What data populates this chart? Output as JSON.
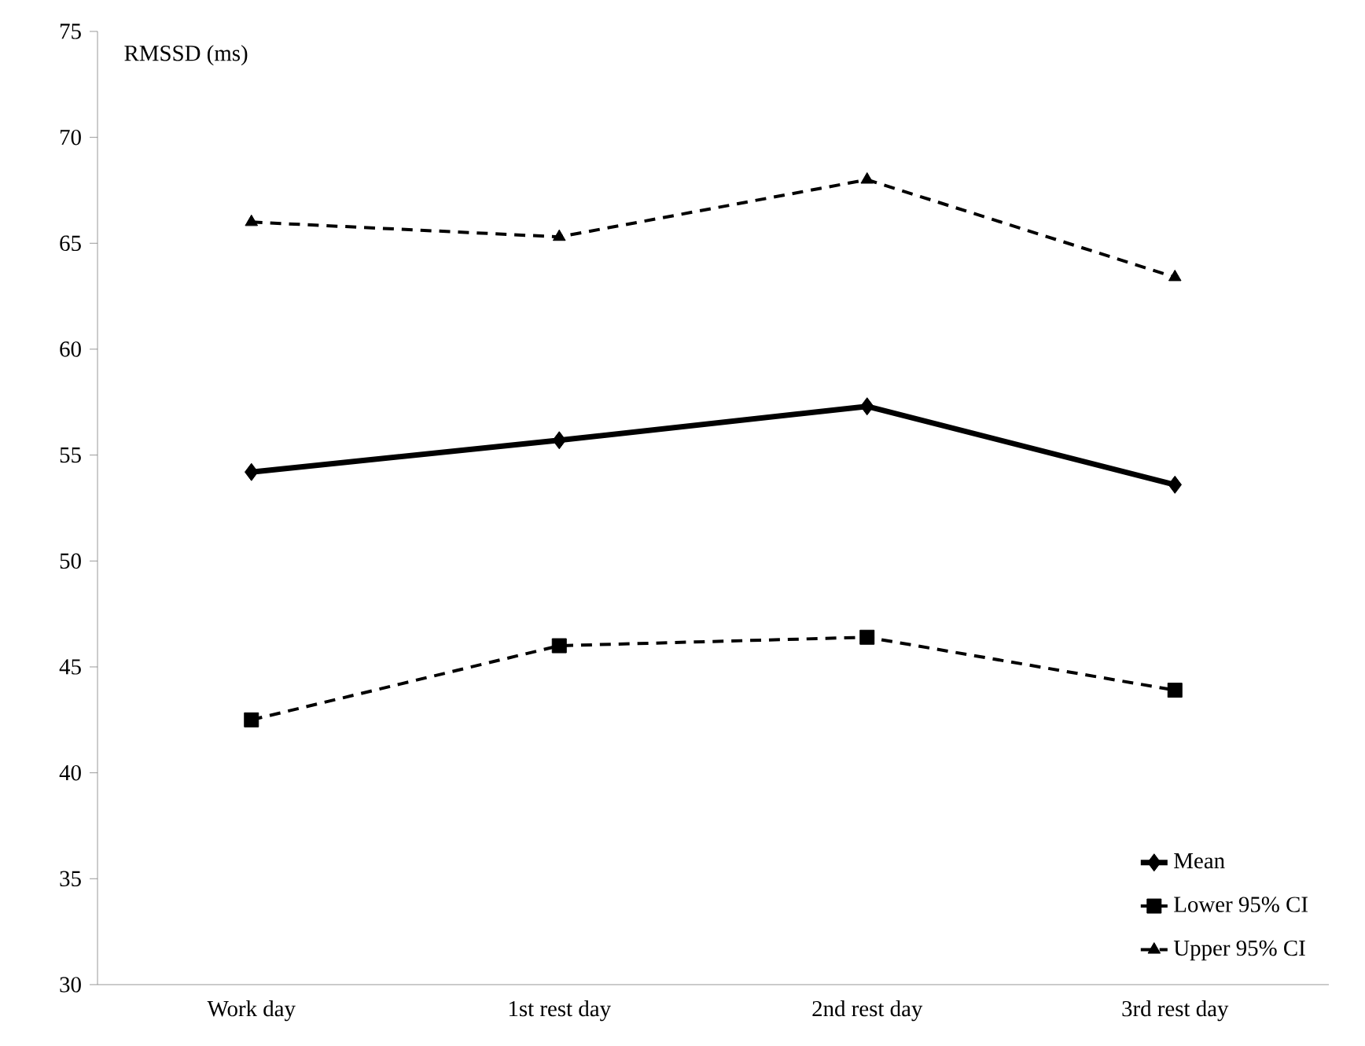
{
  "chart_data": {
    "type": "line",
    "ylabel": "RMSSD (ms)",
    "categories": [
      "Work day",
      "1st rest day",
      "2nd rest day",
      "3rd rest day"
    ],
    "series": [
      {
        "name": "Mean",
        "color": "#000000",
        "values": [
          54.2,
          55.7,
          57.3,
          53.6
        ],
        "marker": "diamond",
        "line_style": "solid"
      },
      {
        "name": "Lower 95% CI",
        "color": "#000000",
        "values": [
          42.5,
          46.0,
          46.4,
          43.9
        ],
        "marker": "square",
        "line_style": "dashed"
      },
      {
        "name": "Upper 95% CI",
        "color": "#000000",
        "values": [
          66.0,
          65.3,
          68.0,
          63.4
        ],
        "marker": "triangle",
        "line_style": "dashed"
      }
    ],
    "ylim": [
      30,
      75
    ],
    "yticks": [
      30,
      35,
      40,
      45,
      50,
      55,
      60,
      65,
      70,
      75
    ],
    "legend": "bottom right",
    "grid": false
  }
}
